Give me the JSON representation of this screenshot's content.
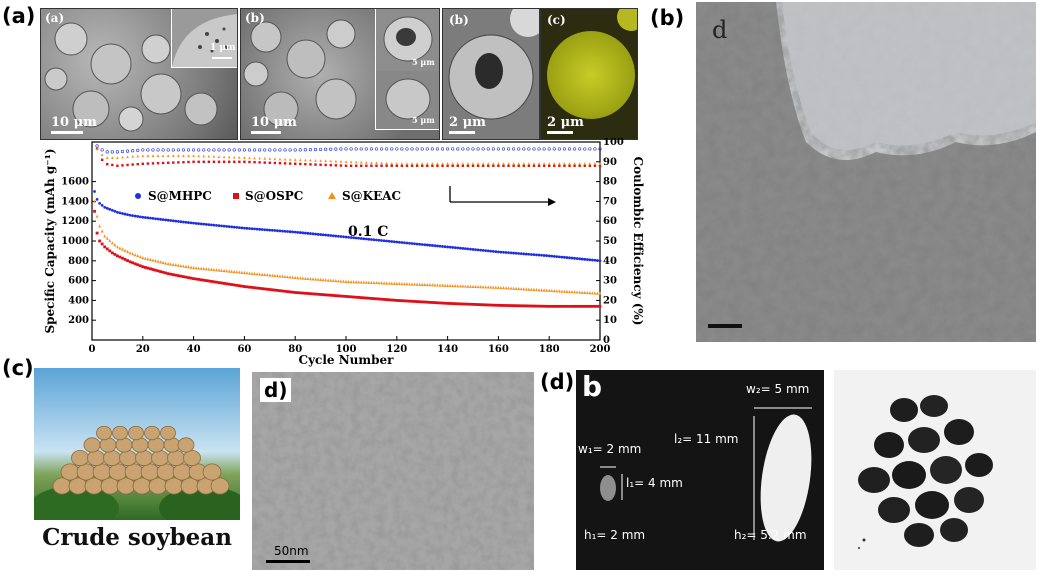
{
  "panel_labels": {
    "a": "(a)",
    "b": "(b)",
    "c": "(c)",
    "d": "(d)"
  },
  "sem_images": {
    "img1": {
      "label": "(a)",
      "scale": "10 μm",
      "inset_scale": "1 μm"
    },
    "img2": {
      "label": "(b)",
      "scale": "10 μm",
      "inset_scale_top": "5 μm",
      "inset_scale_bottom": "5 μm"
    },
    "img3": {
      "label": "(b)",
      "scale": "2 μm"
    },
    "img4": {
      "label": "(c)",
      "scale": "2 μm"
    }
  },
  "tem_b": {
    "label": "d"
  },
  "soybean": {
    "caption": "Crude soybean"
  },
  "tem_d": {
    "label": "d)",
    "scale": "50nm"
  },
  "photo_d": {
    "label": "b",
    "w1": "w₁= 2 mm",
    "l1": "l₁= 4 mm",
    "h1": "h₁= 2 mm",
    "w2": "w₂= 5 mm",
    "l2": "l₂= 11 mm",
    "h2": "h₂= 5.2 mm"
  },
  "chart_data": {
    "type": "scatter",
    "xlabel": "Cycle Number",
    "ylabel": "Specific Capacity (mAh g⁻¹)",
    "y2label": "Coulombic Efficiency (%)",
    "annotation": "0.1 C",
    "xlim": [
      0,
      200
    ],
    "ylim": [
      0,
      2000
    ],
    "y2lim": [
      0,
      100
    ],
    "xticks": [
      0,
      20,
      40,
      60,
      80,
      100,
      120,
      140,
      160,
      180,
      200
    ],
    "yticks": [
      200,
      400,
      600,
      800,
      1000,
      1200,
      1400,
      1600
    ],
    "y2ticks": [
      0,
      10,
      20,
      30,
      40,
      50,
      60,
      70,
      80,
      90,
      100
    ],
    "legend": "top-left",
    "series": [
      {
        "name": "S@MHPC",
        "color": "#1f2fe0",
        "marker": "circle",
        "x": [
          1,
          2,
          3,
          5,
          8,
          10,
          15,
          20,
          30,
          40,
          60,
          80,
          100,
          120,
          140,
          160,
          180,
          200
        ],
        "capacity": [
          1500,
          1420,
          1380,
          1340,
          1310,
          1290,
          1260,
          1240,
          1210,
          1180,
          1130,
          1090,
          1040,
          990,
          940,
          890,
          850,
          800
        ],
        "ce_x": [
          1,
          3,
          5,
          10,
          20,
          40,
          60,
          80,
          100,
          120,
          140,
          160,
          180,
          200
        ],
        "ce": [
          99,
          97,
          95,
          95,
          96,
          96,
          96,
          96,
          96.5,
          96.5,
          96.5,
          96.5,
          96.5,
          96.5
        ]
      },
      {
        "name": "S@OSPC",
        "color": "#e00f16",
        "marker": "square",
        "x": [
          1,
          2,
          3,
          5,
          8,
          10,
          15,
          20,
          30,
          40,
          60,
          80,
          100,
          120,
          140,
          160,
          180,
          200
        ],
        "capacity": [
          1300,
          1080,
          1000,
          940,
          880,
          850,
          790,
          740,
          670,
          620,
          540,
          480,
          440,
          400,
          370,
          350,
          340,
          340
        ],
        "ce_x": [
          1,
          3,
          5,
          10,
          20,
          40,
          60,
          80,
          100,
          120,
          140,
          160,
          180,
          200
        ],
        "ce": [
          100,
          93,
          89,
          88,
          89,
          90,
          90,
          89,
          88,
          88,
          88,
          88,
          88,
          88
        ]
      },
      {
        "name": "S@KEAC",
        "color": "#f5901e",
        "marker": "triangle",
        "x": [
          1,
          2,
          3,
          5,
          8,
          10,
          15,
          20,
          30,
          40,
          60,
          80,
          100,
          120,
          140,
          160,
          180,
          200
        ],
        "capacity": [
          1400,
          1250,
          1150,
          1050,
          980,
          940,
          880,
          830,
          770,
          730,
          680,
          630,
          590,
          570,
          550,
          530,
          500,
          470
        ],
        "ce_x": [
          1,
          3,
          5,
          10,
          20,
          40,
          60,
          80,
          100,
          120,
          140,
          160,
          180,
          200
        ],
        "ce": [
          98,
          95,
          92,
          92,
          93,
          93,
          92,
          91,
          90,
          89,
          89,
          89,
          89,
          89
        ]
      }
    ]
  }
}
